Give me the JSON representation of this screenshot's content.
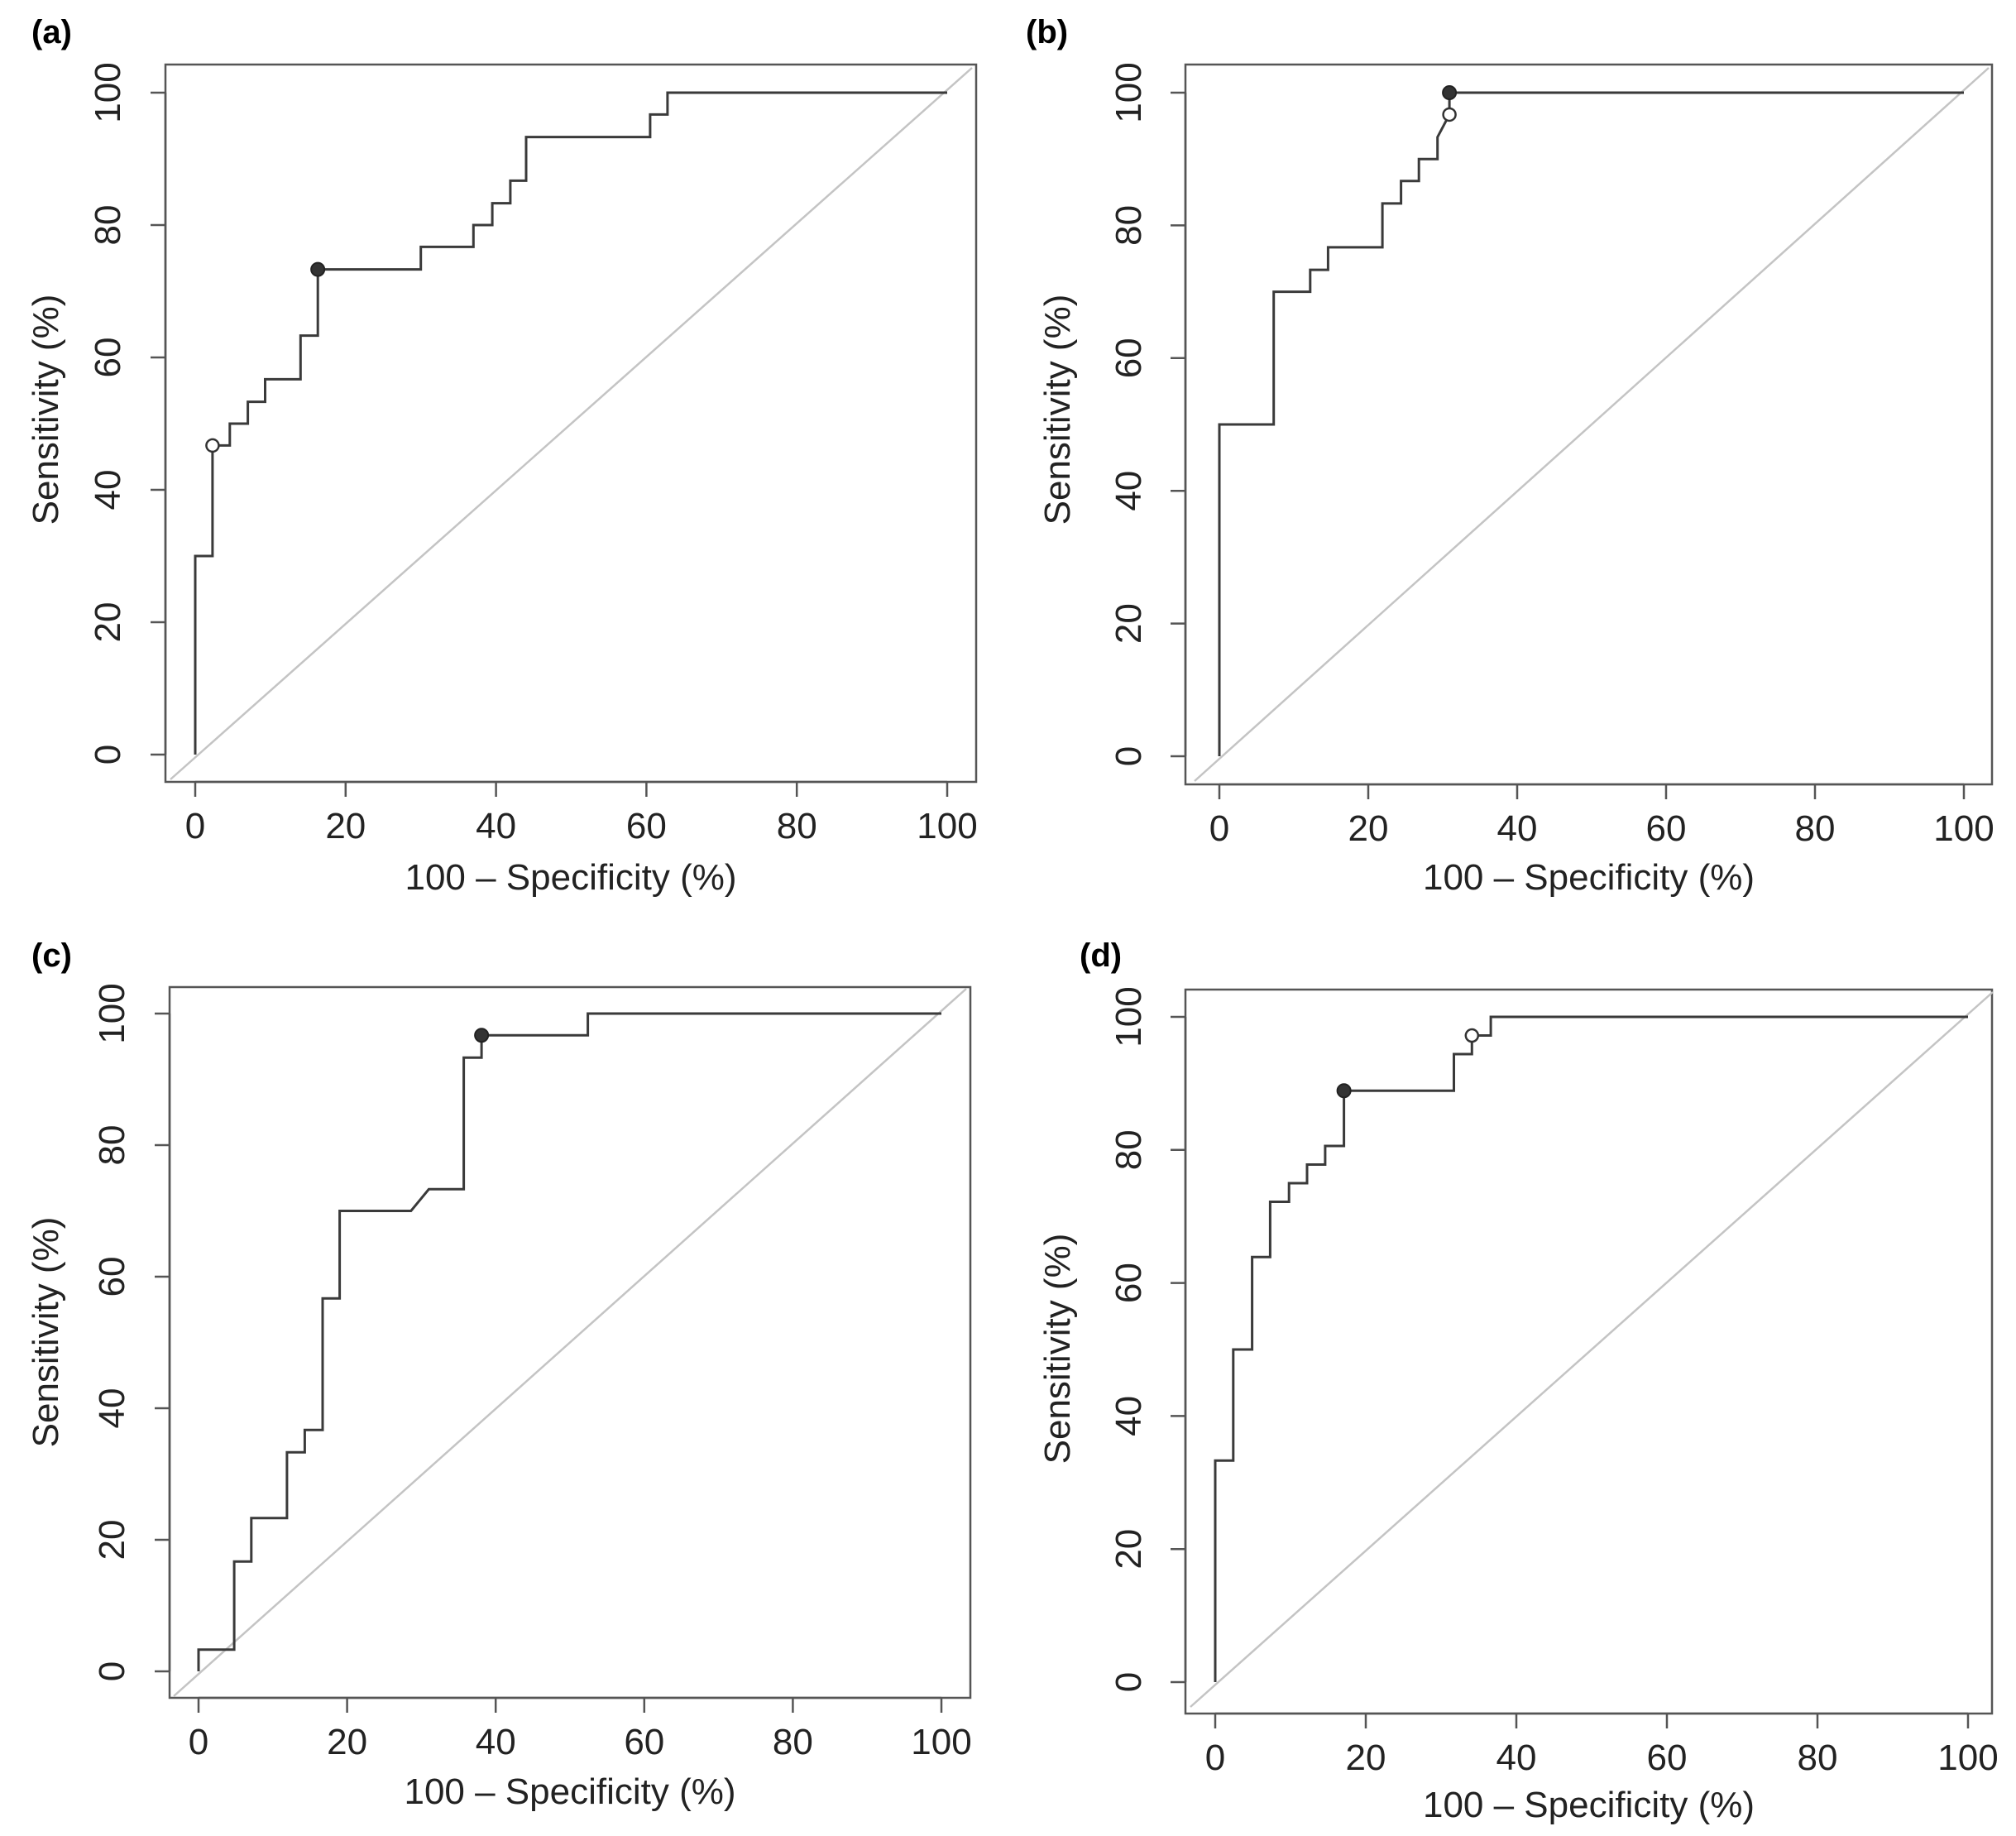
{
  "chart_data": [
    {
      "type": "line",
      "panel": "(a)",
      "xlabel": "100 – Specificity (%)",
      "ylabel": "Sensitivity (%)",
      "xlim": [
        0,
        100
      ],
      "ylim": [
        0,
        100
      ],
      "xticks": [
        0,
        20,
        40,
        60,
        80,
        100
      ],
      "yticks": [
        0,
        20,
        40,
        60,
        80,
        100
      ],
      "roc": [
        [
          0,
          0
        ],
        [
          0,
          30
        ],
        [
          2.3,
          30
        ],
        [
          2.3,
          46.7
        ],
        [
          4.6,
          46.7
        ],
        [
          4.6,
          50
        ],
        [
          7,
          50
        ],
        [
          7,
          53.3
        ],
        [
          9.3,
          53.3
        ],
        [
          9.3,
          56.7
        ],
        [
          14,
          56.7
        ],
        [
          14,
          63.3
        ],
        [
          16.3,
          63.3
        ],
        [
          16.3,
          73.3
        ],
        [
          30,
          73.3
        ],
        [
          30,
          76.7
        ],
        [
          37,
          76.7
        ],
        [
          37,
          80
        ],
        [
          39.5,
          80
        ],
        [
          39.5,
          83.3
        ],
        [
          41.9,
          83.3
        ],
        [
          41.9,
          86.7
        ],
        [
          44,
          86.7
        ],
        [
          44,
          93.3
        ],
        [
          60.5,
          93.3
        ],
        [
          60.5,
          96.7
        ],
        [
          62.8,
          96.7
        ],
        [
          62.8,
          100
        ],
        [
          100,
          100
        ]
      ],
      "filled_point": [
        16.3,
        73.3
      ],
      "open_point": [
        2.3,
        46.7
      ]
    },
    {
      "type": "line",
      "panel": "(b)",
      "xlabel": "100 – Specificity (%)",
      "ylabel": "Sensitivity (%)",
      "xlim": [
        0,
        100
      ],
      "ylim": [
        0,
        100
      ],
      "xticks": [
        0,
        20,
        40,
        60,
        80,
        100
      ],
      "yticks": [
        0,
        20,
        40,
        60,
        80,
        100
      ],
      "roc": [
        [
          0,
          0
        ],
        [
          0,
          50
        ],
        [
          7.3,
          50
        ],
        [
          7.3,
          70
        ],
        [
          12.2,
          70
        ],
        [
          12.2,
          73.3
        ],
        [
          14.6,
          73.3
        ],
        [
          14.6,
          76.7
        ],
        [
          21.9,
          76.7
        ],
        [
          21.9,
          83.3
        ],
        [
          24.4,
          83.3
        ],
        [
          24.4,
          86.7
        ],
        [
          26.8,
          86.7
        ],
        [
          26.8,
          90
        ],
        [
          29.3,
          90
        ],
        [
          29.3,
          93.3
        ],
        [
          30.9,
          96.7
        ],
        [
          30.9,
          100
        ],
        [
          100,
          100
        ]
      ],
      "filled_point": [
        30.9,
        100
      ],
      "open_point": [
        30.9,
        96.7
      ]
    },
    {
      "type": "line",
      "panel": "(c)",
      "xlabel": "100 – Specificity (%)",
      "ylabel": "Sensitivity (%)",
      "xlim": [
        0,
        100
      ],
      "ylim": [
        0,
        100
      ],
      "xticks": [
        0,
        20,
        40,
        60,
        80,
        100
      ],
      "yticks": [
        0,
        20,
        40,
        60,
        80,
        100
      ],
      "roc": [
        [
          0,
          0
        ],
        [
          0,
          3.3
        ],
        [
          4.8,
          3.3
        ],
        [
          4.8,
          16.7
        ],
        [
          7.1,
          16.7
        ],
        [
          7.1,
          23.3
        ],
        [
          11.9,
          23.3
        ],
        [
          11.9,
          33.3
        ],
        [
          14.3,
          33.3
        ],
        [
          14.3,
          36.7
        ],
        [
          16.7,
          36.7
        ],
        [
          16.7,
          56.7
        ],
        [
          19,
          56.7
        ],
        [
          19,
          70
        ],
        [
          28.6,
          70
        ],
        [
          31,
          73.3
        ],
        [
          35.7,
          73.3
        ],
        [
          35.7,
          93.3
        ],
        [
          38.1,
          93.3
        ],
        [
          38.1,
          96.7
        ],
        [
          52.4,
          96.7
        ],
        [
          52.4,
          100
        ],
        [
          100,
          100
        ]
      ],
      "filled_point": [
        38.1,
        96.7
      ],
      "open_point": null
    },
    {
      "type": "line",
      "panel": "(d)",
      "xlabel": "100 – Specificity (%)",
      "ylabel": "Sensitivity (%)",
      "xlim": [
        0,
        100
      ],
      "ylim": [
        0,
        100
      ],
      "xticks": [
        0,
        20,
        40,
        60,
        80,
        100
      ],
      "yticks": [
        0,
        20,
        40,
        60,
        80,
        100
      ],
      "roc": [
        [
          0,
          0
        ],
        [
          0,
          33.3
        ],
        [
          2.4,
          33.3
        ],
        [
          2.4,
          50
        ],
        [
          4.9,
          50
        ],
        [
          4.9,
          63.9
        ],
        [
          7.3,
          63.9
        ],
        [
          7.3,
          72.2
        ],
        [
          9.8,
          72.2
        ],
        [
          9.8,
          75
        ],
        [
          12.2,
          75
        ],
        [
          12.2,
          77.8
        ],
        [
          14.6,
          77.8
        ],
        [
          14.6,
          80.6
        ],
        [
          17.1,
          80.6
        ],
        [
          17.1,
          88.9
        ],
        [
          31.7,
          88.9
        ],
        [
          31.7,
          94.4
        ],
        [
          34.1,
          94.4
        ],
        [
          34.1,
          97.2
        ],
        [
          36.6,
          97.2
        ],
        [
          36.6,
          100
        ],
        [
          100,
          100
        ]
      ],
      "filled_point": [
        17.1,
        88.9
      ],
      "open_point": [
        34.1,
        97.2
      ]
    }
  ]
}
